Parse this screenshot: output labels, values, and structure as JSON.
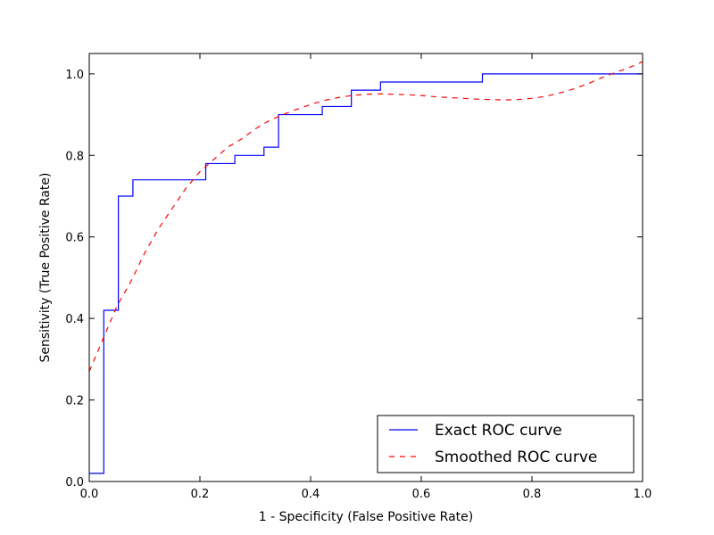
{
  "chart_data": {
    "type": "line",
    "title": "",
    "xlabel": "1 - Specificity (False Positive Rate)",
    "ylabel": "Sensitivity (True Positive Rate)",
    "xlim": [
      0.0,
      1.0
    ],
    "ylim": [
      0.0,
      1.05
    ],
    "xticks": [
      "0.0",
      "0.2",
      "0.4",
      "0.6",
      "0.8",
      "1.0"
    ],
    "yticks": [
      "0.0",
      "0.2",
      "0.4",
      "0.6",
      "0.8",
      "1.0"
    ],
    "grid": false,
    "legend_position": "bottom-right",
    "series": [
      {
        "name": "Exact ROC curve",
        "style": "solid-step",
        "color": "#0000ff",
        "x": [
          0.0,
          0.0263,
          0.0263,
          0.0526,
          0.0526,
          0.0789,
          0.0789,
          0.2105,
          0.2105,
          0.2632,
          0.2632,
          0.3158,
          0.3158,
          0.3421,
          0.3421,
          0.4211,
          0.4211,
          0.4737,
          0.4737,
          0.5263,
          0.5263,
          0.7105,
          0.7105,
          1.0
        ],
        "y": [
          0.02,
          0.02,
          0.42,
          0.42,
          0.7,
          0.7,
          0.74,
          0.74,
          0.78,
          0.78,
          0.8,
          0.8,
          0.82,
          0.82,
          0.9,
          0.9,
          0.92,
          0.92,
          0.96,
          0.96,
          0.98,
          0.98,
          1.0,
          1.0
        ]
      },
      {
        "name": "Smoothed ROC curve",
        "style": "dashed",
        "color": "#ff0000",
        "x": [
          0.0,
          0.025,
          0.05,
          0.075,
          0.1,
          0.125,
          0.15,
          0.175,
          0.2,
          0.225,
          0.25,
          0.275,
          0.3,
          0.325,
          0.35,
          0.375,
          0.4,
          0.425,
          0.45,
          0.475,
          0.5,
          0.525,
          0.55,
          0.575,
          0.6,
          0.625,
          0.65,
          0.675,
          0.7,
          0.725,
          0.75,
          0.775,
          0.8,
          0.825,
          0.85,
          0.875,
          0.9,
          0.925,
          0.95,
          0.975,
          1.0
        ],
        "y": [
          0.27,
          0.35,
          0.43,
          0.49,
          0.56,
          0.62,
          0.67,
          0.72,
          0.76,
          0.79,
          0.82,
          0.84,
          0.865,
          0.885,
          0.9,
          0.913,
          0.925,
          0.935,
          0.942,
          0.947,
          0.95,
          0.951,
          0.95,
          0.949,
          0.947,
          0.944,
          0.942,
          0.94,
          0.938,
          0.937,
          0.936,
          0.937,
          0.94,
          0.945,
          0.953,
          0.963,
          0.975,
          0.99,
          1.003,
          1.015,
          1.03
        ]
      }
    ]
  }
}
